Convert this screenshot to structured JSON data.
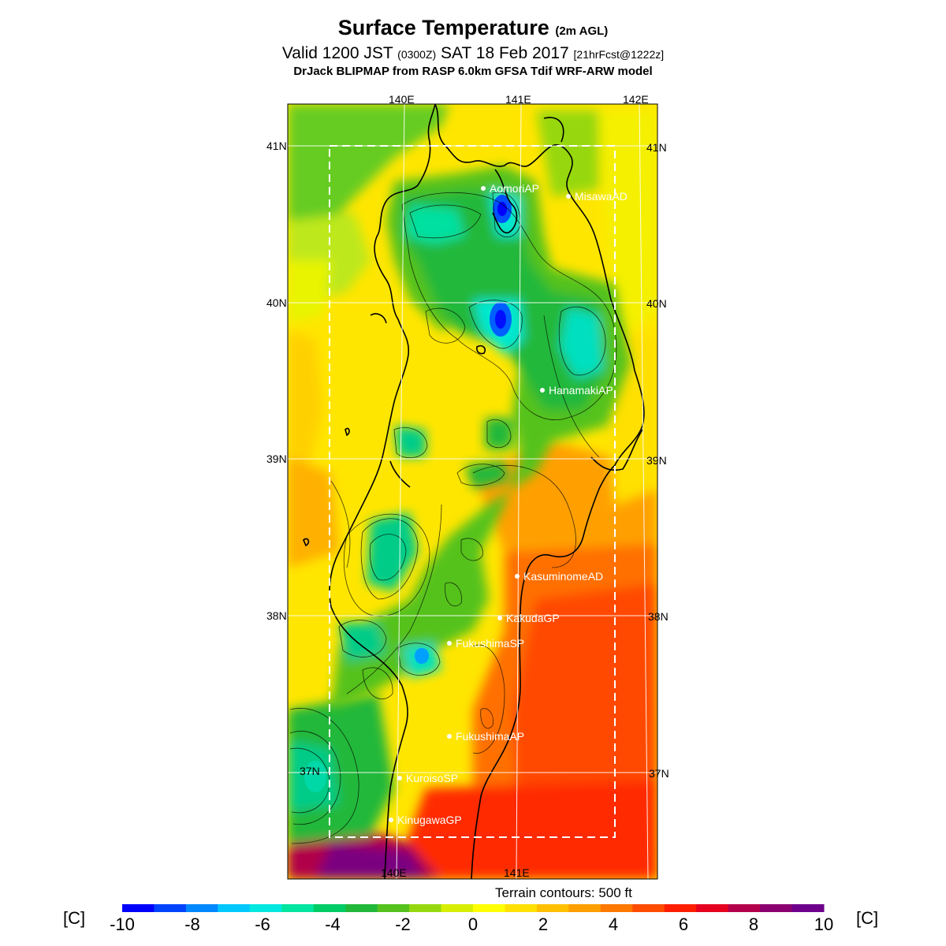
{
  "header": {
    "title": "Surface Temperature",
    "title_suffix": "(2m AGL)",
    "valid_prefix": "Valid 1200 JST",
    "valid_zulu": "(0300Z)",
    "valid_date": "SAT 18 Feb 2017",
    "forecast": "[21hrFcst@1222z]",
    "model_line": "DrJack BLIPMAP from RASP 6.0km GFSA Tdif WRF-ARW model"
  },
  "map": {
    "lon_labels": [
      "140E",
      "141E",
      "142E"
    ],
    "lat_labels": [
      "41N",
      "40N",
      "39N",
      "38N",
      "37N"
    ],
    "terrain_note": "Terrain contours: 500 ft",
    "stations": [
      {
        "name": "AomoriAP"
      },
      {
        "name": "MisawaAD"
      },
      {
        "name": "HanamakiAP"
      },
      {
        "name": "KasuminomeAD"
      },
      {
        "name": "KakudaGP"
      },
      {
        "name": "FukushimaSP"
      },
      {
        "name": "FukushimaAP"
      },
      {
        "name": "KuroisoSP"
      },
      {
        "name": "KinugawaGP"
      }
    ]
  },
  "colorbar": {
    "unit_left": "[C]",
    "unit_right": "[C]",
    "tick_labels": [
      "-10",
      "-8",
      "-6",
      "-4",
      "-2",
      "0",
      "2",
      "4",
      "6",
      "8",
      "10"
    ],
    "colors": [
      "#0000ff",
      "#0044ff",
      "#0088ff",
      "#00c8ff",
      "#00e8e0",
      "#00e6a0",
      "#00cc66",
      "#22b83a",
      "#55c21e",
      "#96d810",
      "#d8ee00",
      "#ffff00",
      "#ffe000",
      "#ffc000",
      "#ff9e00",
      "#ff7800",
      "#ff4c00",
      "#ff1e00",
      "#e60020",
      "#b4004c",
      "#8a0070",
      "#6e008c"
    ]
  }
}
